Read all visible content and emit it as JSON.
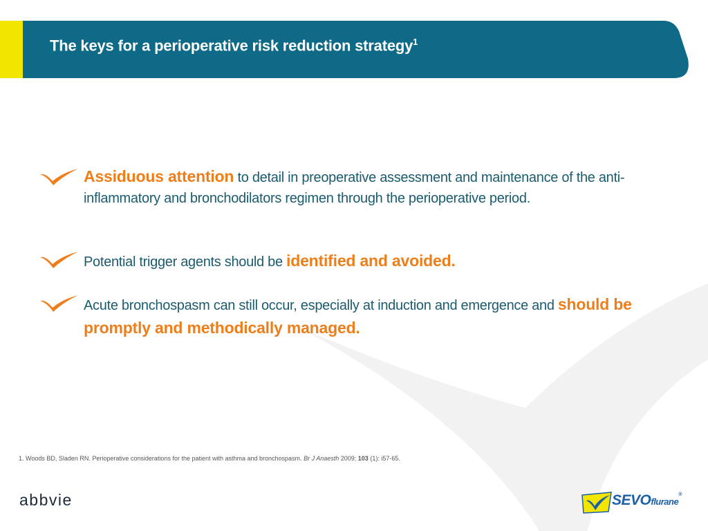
{
  "header": {
    "title": "The keys for a perioperative risk reduction strategy",
    "title_sup": "1",
    "band_color": "#0e6a86",
    "accent_color": "#f2e600"
  },
  "bullets": [
    {
      "highlight": "Assiduous attention",
      "text": " to detail in preoperative assessment and maintenance of the anti-inflammatory and bronchodilators regimen through the perioperative period."
    },
    {
      "text": "Potential trigger agents should be ",
      "highlight": "identified and avoided."
    },
    {
      "text": "Acute bronchospasm can still occur, especially at induction and emergence and ",
      "highlight": "should be promptly and methodically managed."
    }
  ],
  "footnote": {
    "text": "1. Woods BD, Sladen RN. Perioperative considerations for the patient with asthma and bronchospasm. ",
    "journal": "Br J Anaesth",
    "year": " 2009; ",
    "volume": "103",
    "rest": " (1): i57-65."
  },
  "logos": {
    "company": "abbvie",
    "product_main": "SEVO",
    "product_sub": "flurane",
    "product_mark": "®"
  },
  "colors": {
    "text": "#1a5b6e",
    "highlight": "#ee7e1a",
    "check": "#ee7e1a"
  }
}
